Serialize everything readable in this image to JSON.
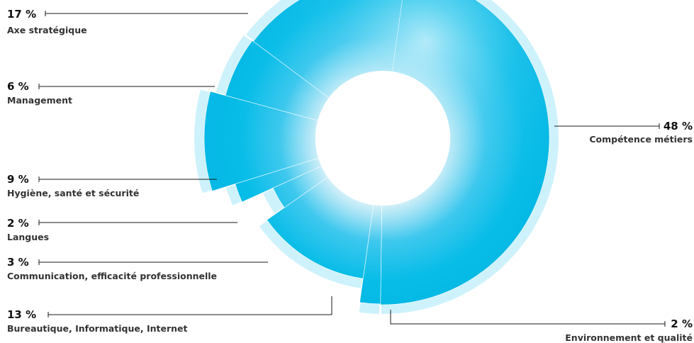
{
  "chart_data": {
    "type": "pie",
    "variant": "donut",
    "title": "",
    "slices": [
      {
        "label": "Compétence métiers",
        "value": 48,
        "value_label": "48 %"
      },
      {
        "label": "Environnement et qualité",
        "value": 2,
        "value_label": "2 %"
      },
      {
        "label": "Bureautique, Informatique, Internet",
        "value": 13,
        "value_label": "13 %"
      },
      {
        "label": "Communication, efficacité professionnelle",
        "value": 3,
        "value_label": "3 %"
      },
      {
        "label": "Langues",
        "value": 2,
        "value_label": "2 %"
      },
      {
        "label": "Hygiène, santé et sécurité",
        "value": 9,
        "value_label": "9 %"
      },
      {
        "label": "Management",
        "value": 6,
        "value_label": "6 %"
      },
      {
        "label": "Axe stratégique",
        "value": 17,
        "value_label": "17 %"
      }
    ],
    "colors": {
      "slice": "#0bbde8",
      "slice_light": "#b8ecfa",
      "label_text": "#333333",
      "value_text": "#111111"
    }
  }
}
